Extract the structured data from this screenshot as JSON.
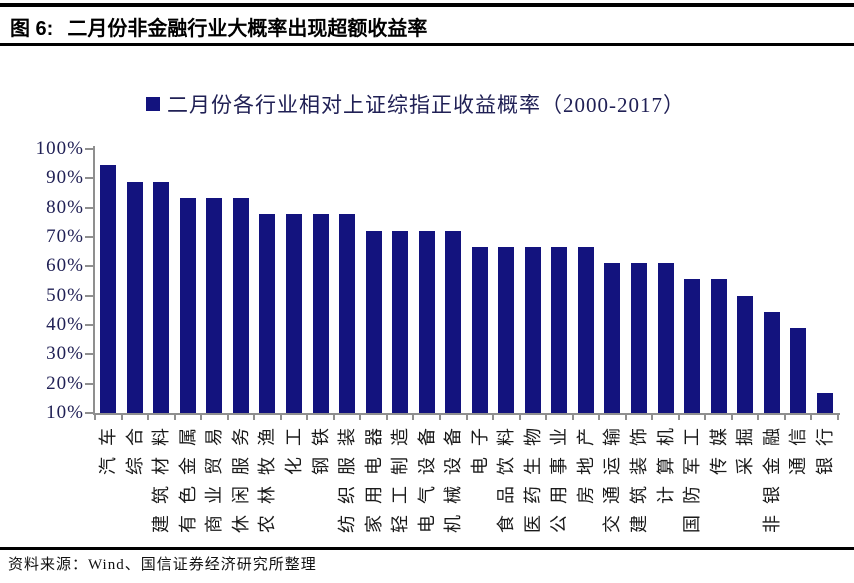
{
  "header": {
    "figure_label": "图 6:",
    "title": "二月份非金融行业大概率出现超额收益率"
  },
  "legend": {
    "label": "二月份各行业相对上证综指正收益概率（2000-2017）"
  },
  "chart_data": {
    "type": "bar",
    "title": "二月份各行业相对上证综指正收益概率（2000-2017）",
    "categories": [
      "汽车",
      "综合",
      "建筑材料",
      "有色金属",
      "商业贸易",
      "休闲服务",
      "农林牧渔",
      "化工",
      "钢铁",
      "纺织服装",
      "家用电器",
      "轻工制造",
      "电气设备",
      "机械设备",
      "电子",
      "食品饮料",
      "医药生物",
      "公用事业",
      "房地产",
      "交通运输",
      "建筑装饰",
      "计算机",
      "国防军工",
      "传媒",
      "采掘",
      "非银金融",
      "通信",
      "银行"
    ],
    "values": [
      94.4,
      88.9,
      88.9,
      83.3,
      83.3,
      83.3,
      77.8,
      77.8,
      77.8,
      77.8,
      72.2,
      72.2,
      72.2,
      72.2,
      66.7,
      66.7,
      66.7,
      66.7,
      66.7,
      61.1,
      61.1,
      61.1,
      55.6,
      55.6,
      50.0,
      44.4,
      38.9,
      16.7
    ],
    "xlabel": "",
    "ylabel": "",
    "ylim": [
      10,
      100
    ],
    "ytick_labels": [
      "100%",
      "90%",
      "80%",
      "70%",
      "60%",
      "50%",
      "40%",
      "30%",
      "20%",
      "10%"
    ],
    "grid": false,
    "legend_position": "top",
    "bar_color": "#13137E",
    "axis_color": "#8F8F8F",
    "ytick_text_color": "#202055",
    "xtick_text_color": "#1A1A1A"
  },
  "footer": {
    "source": "资料来源：Wind、国信证券经济研究所整理"
  }
}
